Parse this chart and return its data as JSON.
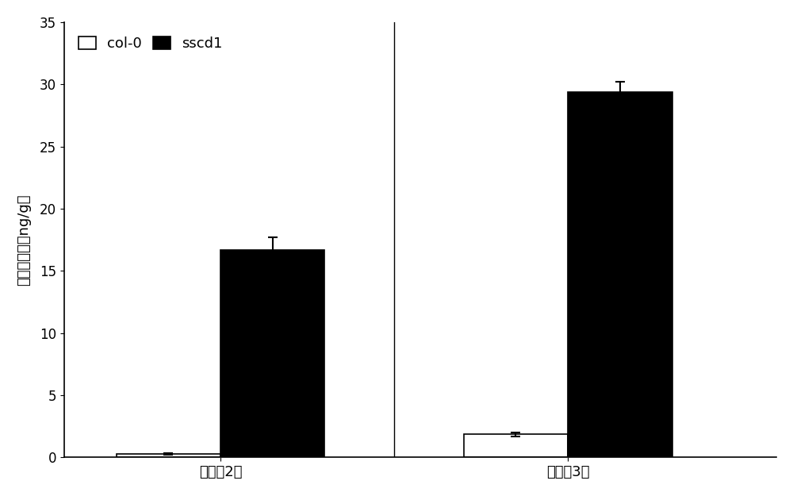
{
  "groups": [
    "短日照2天",
    "短日照3天"
  ],
  "col0_values": [
    0.3,
    1.85
  ],
  "sscd1_values": [
    16.7,
    29.4
  ],
  "col0_errors": [
    0.05,
    0.15
  ],
  "sscd1_errors": [
    1.0,
    0.8
  ],
  "col0_color": "#ffffff",
  "sscd1_color": "#000000",
  "bar_edge_color": "#000000",
  "ylabel": "茉莉酸含量（ng/g）",
  "ylim": [
    0,
    35
  ],
  "yticks": [
    0,
    5,
    10,
    15,
    20,
    25,
    30,
    35
  ],
  "legend_col0": "col-0",
  "legend_sscd1": "sscd1",
  "bar_width": 0.3,
  "background_color": "#ffffff",
  "font_size": 13,
  "tick_font_size": 12
}
